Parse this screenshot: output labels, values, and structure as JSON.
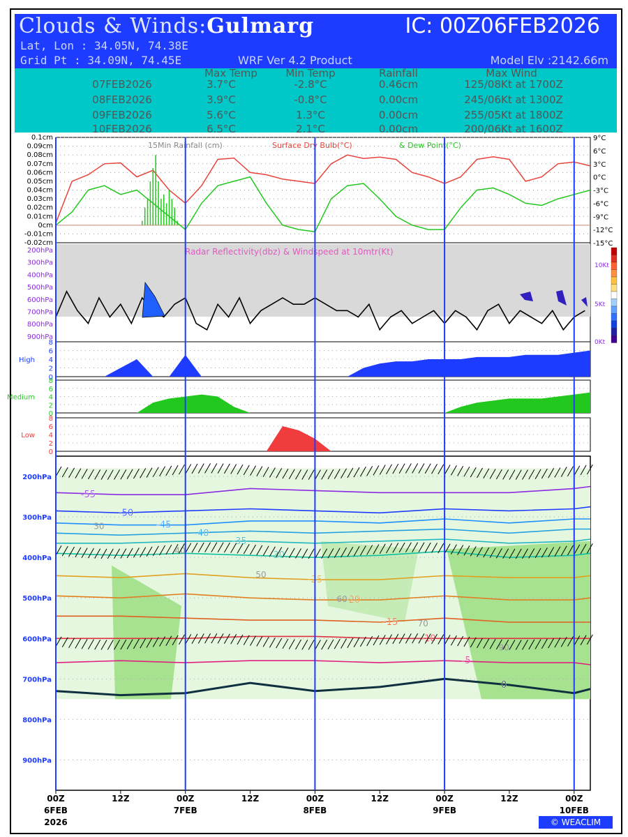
{
  "header": {
    "title_prefix": "Clouds & Winds:",
    "location": "Gulmarg",
    "ic": "IC: 00Z06FEB2026",
    "latlon": "Lat, Lon : 34.05N, 74.38E",
    "gridpt": "Grid Pt  : 34.09N, 74.45E",
    "product": "WRF Ver 4.2 Product",
    "elevation": "Model Elv :2142.66m"
  },
  "table": {
    "headers": [
      "Max Temp",
      "Min Temp",
      "Rainfall",
      "Max Wind"
    ],
    "rows": [
      [
        "07FEB2026",
        "3.7°C",
        "-2.8°C",
        "0.46cm",
        "125/08Kt at 1700Z"
      ],
      [
        "08FEB2026",
        "3.9°C",
        "-0.8°C",
        "0.00cm",
        "245/06Kt at 1300Z"
      ],
      [
        "09FEB2026",
        "5.6°C",
        "1.3°C",
        "0.00cm",
        "255/05Kt at 1800Z"
      ],
      [
        "10FEB2026",
        "6.5°C",
        "2.1°C",
        "0.00cm",
        "200/06Kt at 1600Z"
      ]
    ]
  },
  "brand": "© WEACLIM",
  "colors": {
    "header_bg": "#1e3cff",
    "table_bg": "#00c8c8",
    "day_line": "#1e3cff",
    "dry_bulb": "#e8423a",
    "dew_point": "#22c81e",
    "rain": "#22c81e",
    "high_cloud": "#1e3cff",
    "medium_cloud": "#22c81e",
    "low_cloud": "#f03c3c"
  },
  "chart_data": [
    {
      "type": "line",
      "panel": "surface",
      "legend": [
        "15Min Rainfall (cm)",
        "Surface Dry Bulb(°C)",
        "& Dew Point(°C)"
      ],
      "x_ticks": [
        "00Z",
        "12Z",
        "00Z",
        "12Z",
        "00Z",
        "12Z",
        "00Z",
        "12Z",
        "00Z"
      ],
      "x_dates": [
        "6FEB",
        "7FEB",
        "8FEB",
        "9FEB",
        "10FEB"
      ],
      "x_year": "2026",
      "rain_axis_ticks": [
        "0.1cm",
        "0.09cm",
        "0.08cm",
        "0.07cm",
        "0.06cm",
        "0.05cm",
        "0.04cm",
        "0.03cm",
        "0.02cm",
        "0.01cm",
        "0cm",
        "-0.01cm",
        "-0.02cm"
      ],
      "temp_axis_ticks": [
        "9°C",
        "6°C",
        "3°C",
        "0°C",
        "-3°C",
        "-6°C",
        "-9°C",
        "-12°C",
        "-15°C"
      ],
      "ylim_rain": [
        -0.02,
        0.1
      ],
      "ylim_temp": [
        -15,
        9
      ],
      "x_hours": [
        0,
        3,
        6,
        9,
        12,
        15,
        18,
        21,
        24,
        27,
        30,
        33,
        36,
        39,
        42,
        45,
        48,
        51,
        54,
        57,
        60,
        63,
        66,
        69,
        72,
        75,
        78,
        81,
        84,
        87,
        90,
        93,
        96,
        99
      ],
      "series": [
        {
          "name": "Surface Dry Bulb(°C)",
          "values": [
            -10.5,
            -1,
            0.5,
            3,
            3.2,
            0,
            1.5,
            -3,
            -6,
            -2,
            4,
            4.3,
            1,
            0.5,
            -0.5,
            -1,
            -1.5,
            3,
            5,
            4.2,
            4.5,
            4,
            1,
            0,
            -1.5,
            0,
            4,
            4.6,
            4,
            -1,
            0,
            3,
            3.4,
            2.5
          ]
        },
        {
          "name": "& Dew Point(°C)",
          "values": [
            -11,
            -8,
            -3,
            -2,
            -4,
            -3,
            -6,
            -9,
            -12,
            -6,
            -2,
            -1,
            0,
            -6,
            -11,
            -12,
            -12.5,
            -5,
            -2,
            -1.5,
            -5,
            -9,
            -11,
            -12,
            -12,
            -7,
            -3,
            -2.5,
            -4,
            -6,
            -6.5,
            -5,
            -4,
            -3
          ]
        },
        {
          "name": "15Min Rainfall (cm)",
          "x": [
            16,
            16.5,
            17,
            17.5,
            18,
            18.5,
            19,
            19.5,
            20,
            20.5,
            21,
            21.5,
            22,
            22.5
          ],
          "values": [
            0.005,
            0.02,
            0.03,
            0.05,
            0.065,
            0.08,
            0.05,
            0.03,
            0.035,
            0.025,
            0.04,
            0.03,
            0.02,
            0.005
          ]
        }
      ]
    },
    {
      "type": "area",
      "panel": "radar",
      "legend": "Radar Reflectivity(dbz) & Windspeed at 10mtr(Kt)",
      "p_ticks": [
        "200hPa",
        "300hPa",
        "400hPa",
        "500hPa",
        "600hPa",
        "700hPa",
        "800hPa",
        "900hPa"
      ],
      "windspeed_ticks": [
        "10Kt",
        "5Kt",
        "0Kt"
      ],
      "ylim_wind": [
        0,
        12
      ],
      "series": [
        {
          "name": "Windspeed at 10mtr(Kt)",
          "x": [
            0,
            2,
            4,
            6,
            8,
            10,
            12,
            14,
            16,
            18,
            20,
            22,
            24,
            26,
            28,
            30,
            32,
            34,
            36,
            38,
            40,
            42,
            44,
            46,
            48,
            50,
            52,
            54,
            56,
            58,
            60,
            62,
            64,
            66,
            68,
            70,
            72,
            74,
            76,
            78,
            80,
            82,
            84,
            86,
            88,
            90,
            92,
            94,
            96,
            98
          ],
          "values": [
            3,
            7,
            4,
            2,
            6,
            3,
            5,
            2,
            6,
            4,
            3,
            5,
            6,
            2,
            1,
            5,
            3,
            6,
            2,
            4,
            5,
            6,
            5,
            5,
            6,
            5,
            4,
            4,
            3,
            5,
            1,
            3,
            4,
            2,
            3,
            4,
            2,
            4,
            3,
            1,
            4,
            5,
            2,
            4,
            3,
            2,
            4,
            1,
            3,
            4
          ]
        }
      ]
    },
    {
      "type": "area",
      "panel": "High",
      "yticks": [
        "8",
        "6",
        "4",
        "2",
        "0"
      ],
      "ylim": [
        0,
        8
      ],
      "x": [
        0,
        3,
        6,
        9,
        12,
        15,
        18,
        21,
        24,
        27,
        30,
        33,
        36,
        39,
        42,
        45,
        48,
        51,
        54,
        57,
        60,
        63,
        66,
        69,
        72,
        75,
        78,
        81,
        84,
        87,
        90,
        93,
        96,
        99
      ],
      "values": [
        0,
        0,
        0,
        0,
        2,
        4,
        0,
        0,
        5,
        0,
        0,
        0,
        0,
        0,
        0,
        0,
        0,
        0,
        0,
        2,
        3,
        3.5,
        3.5,
        4,
        4,
        4,
        4.5,
        4.5,
        4.5,
        5,
        5,
        5,
        5.5,
        6
      ]
    },
    {
      "type": "area",
      "panel": "Medium",
      "yticks": [
        "8",
        "6",
        "4",
        "2",
        "0"
      ],
      "ylim": [
        0,
        8
      ],
      "x": [
        0,
        3,
        6,
        9,
        12,
        15,
        18,
        21,
        24,
        27,
        30,
        33,
        36,
        39,
        42,
        45,
        48,
        51,
        54,
        57,
        60,
        63,
        66,
        69,
        72,
        75,
        78,
        81,
        84,
        87,
        90,
        93,
        96,
        99
      ],
      "values": [
        0,
        0,
        0,
        0,
        0,
        0,
        2.5,
        3.5,
        4,
        4.5,
        4,
        1.5,
        0,
        0,
        0,
        0,
        0,
        0,
        0,
        0,
        0,
        0,
        0,
        0,
        0,
        1.5,
        2.5,
        3,
        3.5,
        3.5,
        3.5,
        4,
        4.5,
        5
      ]
    },
    {
      "type": "area",
      "panel": "Low",
      "yticks": [
        "8",
        "6",
        "4",
        "2",
        "0"
      ],
      "ylim": [
        0,
        8
      ],
      "x": [
        0,
        3,
        6,
        9,
        12,
        15,
        18,
        21,
        24,
        27,
        30,
        33,
        36,
        39,
        42,
        45,
        48,
        51,
        54,
        57,
        60,
        63,
        66,
        69,
        72,
        75,
        78,
        81,
        84,
        87,
        90,
        93,
        96,
        99
      ],
      "values": [
        0,
        0,
        0,
        0,
        0,
        0,
        0,
        0,
        0,
        0,
        0,
        0,
        0,
        0,
        6,
        5,
        3,
        0,
        0,
        0,
        0,
        0,
        0,
        0,
        0,
        0,
        0,
        0,
        0,
        0,
        0,
        0,
        0,
        0
      ]
    },
    {
      "type": "line",
      "panel": "vertical",
      "p_ticks": [
        "200hPa",
        "300hPa",
        "400hPa",
        "500hPa",
        "600hPa",
        "700hPa",
        "800hPa",
        "900hPa"
      ],
      "ylim": [
        975,
        150
      ],
      "x": [
        0,
        12,
        24,
        36,
        48,
        60,
        72,
        84,
        96,
        99
      ],
      "isotherms": [
        {
          "label": "-55",
          "p": [
            240,
            245,
            245,
            230,
            235,
            240,
            240,
            240,
            230,
            225
          ]
        },
        {
          "label": "-50",
          "p": [
            285,
            290,
            285,
            280,
            285,
            290,
            280,
            285,
            280,
            275
          ]
        },
        {
          "label": "-45",
          "p": [
            315,
            320,
            320,
            310,
            310,
            315,
            305,
            315,
            305,
            305
          ]
        },
        {
          "label": "-40",
          "p": [
            340,
            345,
            340,
            335,
            340,
            335,
            330,
            340,
            330,
            330
          ]
        },
        {
          "label": "-35",
          "p": [
            365,
            365,
            360,
            360,
            365,
            360,
            355,
            365,
            360,
            355
          ]
        },
        {
          "label": "-30",
          "p": [
            390,
            395,
            390,
            395,
            400,
            395,
            385,
            400,
            395,
            390
          ]
        },
        {
          "label": "-25",
          "p": [
            445,
            450,
            440,
            450,
            455,
            455,
            445,
            450,
            450,
            445
          ]
        },
        {
          "label": "-20",
          "p": [
            495,
            500,
            490,
            500,
            505,
            505,
            495,
            505,
            505,
            500
          ]
        },
        {
          "label": "-15",
          "p": [
            545,
            545,
            550,
            555,
            555,
            560,
            550,
            560,
            560,
            560
          ]
        },
        {
          "label": "-10",
          "p": [
            600,
            600,
            600,
            595,
            595,
            600,
            600,
            600,
            600,
            600
          ]
        },
        {
          "label": "-5",
          "p": [
            660,
            655,
            660,
            655,
            655,
            660,
            655,
            660,
            660,
            665
          ]
        },
        {
          "label": "0",
          "p": [
            730,
            740,
            735,
            710,
            730,
            720,
            700,
            715,
            735,
            725
          ]
        }
      ],
      "rh_labels": [
        "30",
        "40",
        "50",
        "60",
        "70",
        "90"
      ]
    }
  ]
}
